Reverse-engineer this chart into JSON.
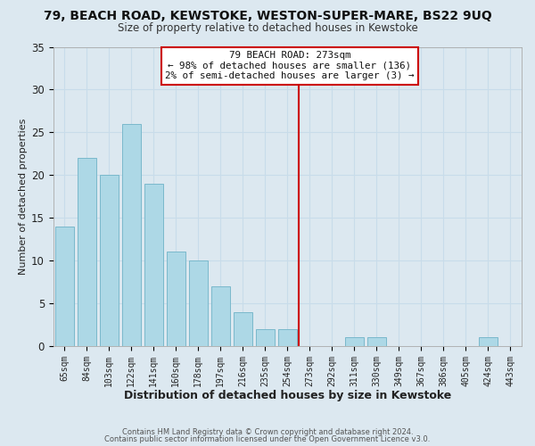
{
  "title_line1": "79, BEACH ROAD, KEWSTOKE, WESTON-SUPER-MARE, BS22 9UQ",
  "title_line2": "Size of property relative to detached houses in Kewstoke",
  "xlabel": "Distribution of detached houses by size in Kewstoke",
  "ylabel": "Number of detached properties",
  "bar_labels": [
    "65sqm",
    "84sqm",
    "103sqm",
    "122sqm",
    "141sqm",
    "160sqm",
    "178sqm",
    "197sqm",
    "216sqm",
    "235sqm",
    "254sqm",
    "273sqm",
    "292sqm",
    "311sqm",
    "330sqm",
    "349sqm",
    "367sqm",
    "386sqm",
    "405sqm",
    "424sqm",
    "443sqm"
  ],
  "bar_values": [
    14,
    22,
    20,
    26,
    19,
    11,
    10,
    7,
    4,
    2,
    2,
    0,
    0,
    1,
    1,
    0,
    0,
    0,
    0,
    1,
    0
  ],
  "bar_color": "#add8e6",
  "bar_edge_color": "#7ab8cc",
  "ref_line_index": 11,
  "reference_line_color": "#cc0000",
  "annotation_title": "79 BEACH ROAD: 273sqm",
  "annotation_line1": "← 98% of detached houses are smaller (136)",
  "annotation_line2": "2% of semi-detached houses are larger (3) →",
  "annotation_box_color": "#ffffff",
  "annotation_box_edge_color": "#cc0000",
  "ylim": [
    0,
    35
  ],
  "yticks": [
    0,
    5,
    10,
    15,
    20,
    25,
    30,
    35
  ],
  "grid_color": "#c8dcea",
  "background_color": "#dce8f0",
  "footer_line1": "Contains HM Land Registry data © Crown copyright and database right 2024.",
  "footer_line2": "Contains public sector information licensed under the Open Government Licence v3.0."
}
